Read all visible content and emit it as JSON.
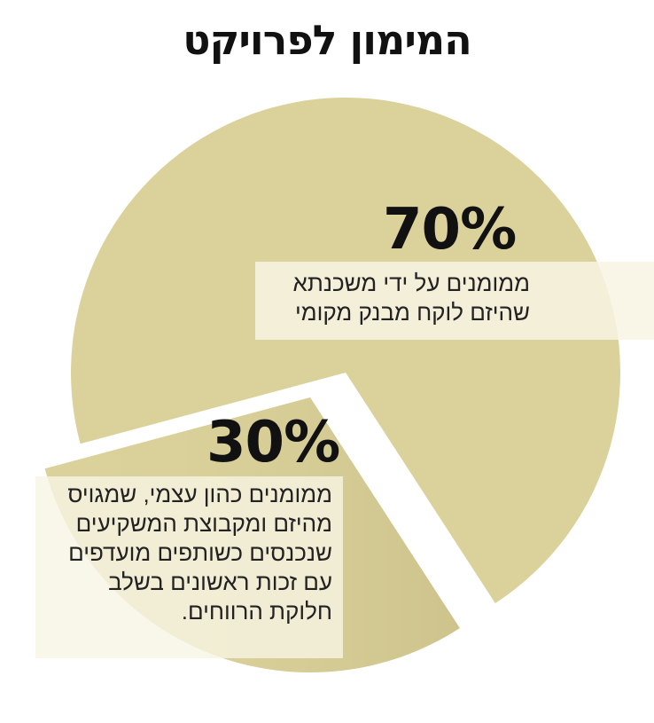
{
  "chart_data": {
    "type": "pie",
    "title": "המימון לפרויקט",
    "slices": [
      {
        "value": 70,
        "value_label": "70%",
        "label_lines": [
          "ממומנים על ידי משכנתא",
          "שהיזם לוקח מבנק מקומי"
        ]
      },
      {
        "value": 30,
        "value_label": "30%",
        "label_lines": [
          "ממומנים כהון עצמי, שמגויס",
          "מהיזם ומקבוצת המשקיעים",
          "שנכנסים כשותפים מועדפים",
          "עם זכות ראשונים בשלב",
          "חלוקת הרווחים."
        ]
      }
    ],
    "exploded_slice": 1
  },
  "colors": {
    "slice_fill": "#dbd19b",
    "shadow": "#a99e63",
    "label_box": "#f8f5e4",
    "text": "#111111"
  }
}
